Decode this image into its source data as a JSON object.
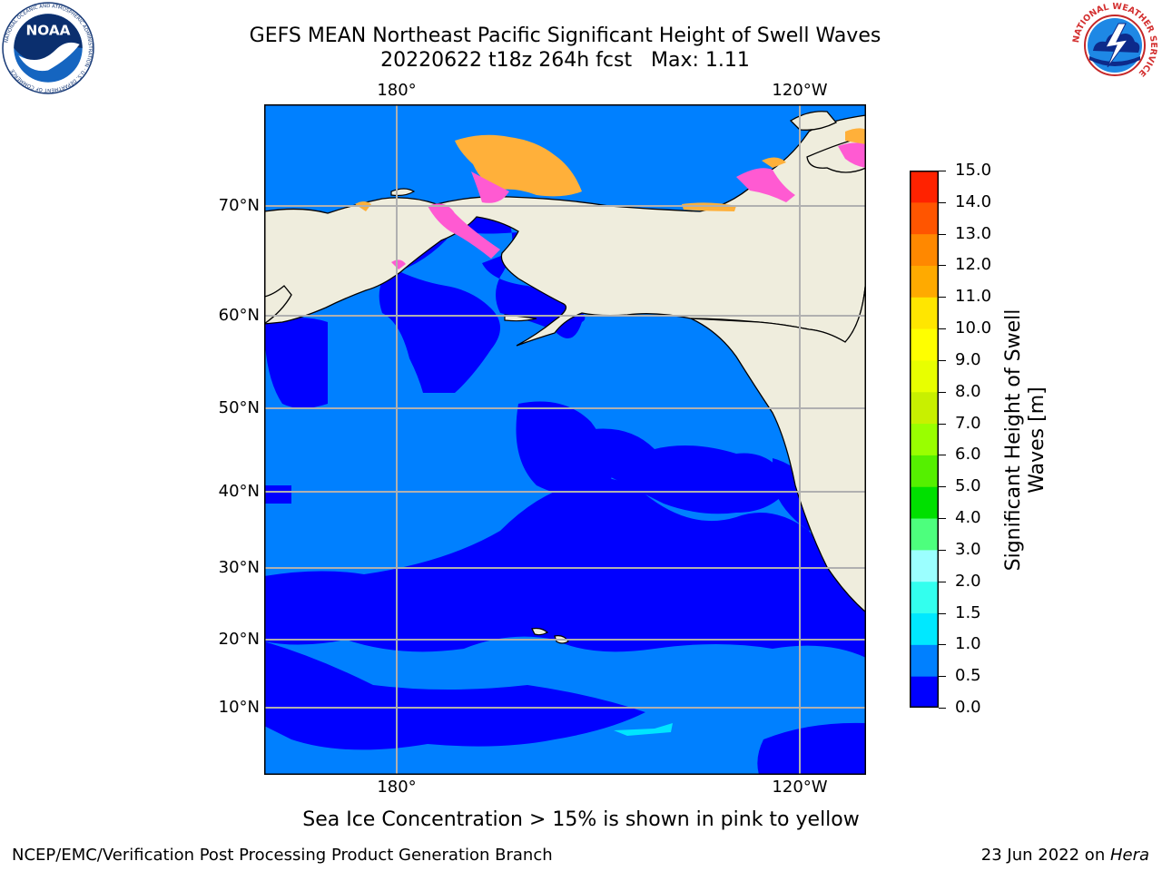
{
  "title_line1": "GEFS MEAN Northeast Pacific Significant Height of Swell Waves",
  "title_line2": "20220622 t18z 264h fcst   Max: 1.11",
  "logos": {
    "noaa": {
      "text": "NOAA",
      "ring_text": "NATIONAL OCEANIC AND ATMOSPHERIC ADMINISTRATION · U.S. DEPARTMENT OF COMMERCE"
    },
    "nws": {
      "ring_text": "NATIONAL WEATHER SERVICE"
    }
  },
  "map": {
    "lon_labels_top": [
      "180°",
      "120°W"
    ],
    "lon_labels_bottom": [
      "180°",
      "120°W"
    ],
    "lat_labels": [
      "70°N",
      "60°N",
      "50°N",
      "40°N",
      "30°N",
      "20°N",
      "10°N"
    ],
    "colors": {
      "land": "#efeddd",
      "swell_0_05": "#0000ff",
      "swell_05_10": "#0080ff",
      "swell_10_15": "#00e5ff",
      "ice_low": "#ff5ad2",
      "ice_high": "#ffb03a",
      "grid": "#b0b0b0"
    }
  },
  "colorbar": {
    "label": "Significant Height of Swell Waves [m]",
    "ticks": [
      "15.0",
      "14.0",
      "13.0",
      "12.0",
      "11.0",
      "10.0",
      "9.0",
      "8.0",
      "7.0",
      "6.0",
      "5.0",
      "4.0",
      "3.0",
      "2.0",
      "1.5",
      "1.0",
      "0.5",
      "0.0"
    ],
    "colors": [
      "#0000ff",
      "#0080ff",
      "#00e8ff",
      "#33ffee",
      "#9bffff",
      "#4dff7d",
      "#00e000",
      "#55f000",
      "#99ff00",
      "#c8f000",
      "#e8ff00",
      "#ffff00",
      "#ffe600",
      "#ffaa00",
      "#ff8800",
      "#ff5500",
      "#ff2200"
    ]
  },
  "footnote": "Sea Ice Concentration > 15% is shown in pink to yellow",
  "footer_left": "NCEP/EMC/Verification Post Processing Product Generation Branch",
  "footer_right_prefix": "23 Jun 2022 on ",
  "footer_right_machine": "Hera"
}
